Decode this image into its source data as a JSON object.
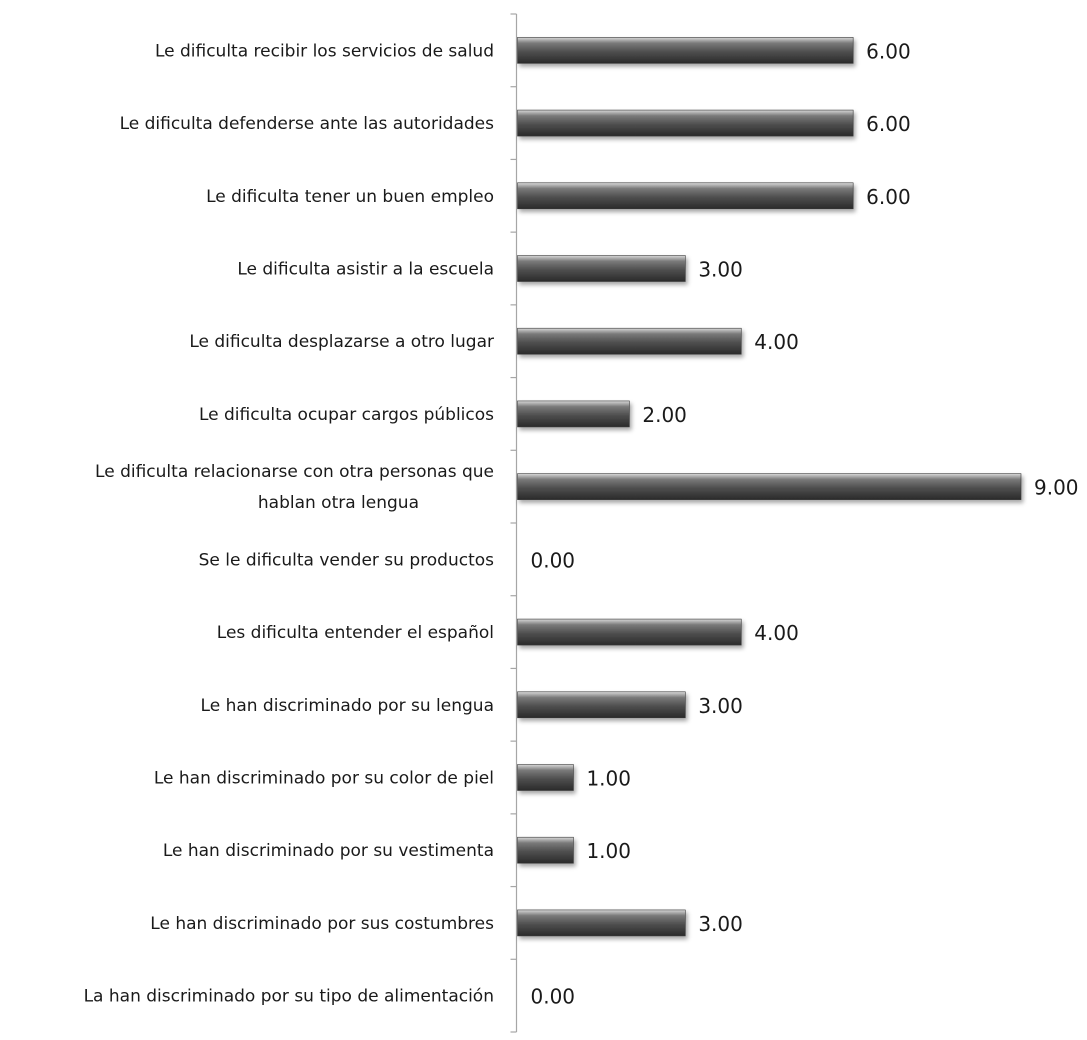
{
  "chart_data": {
    "type": "bar",
    "orientation": "horizontal",
    "categories": [
      "Le dificulta recibir los servicios de salud",
      "Le dificulta defenderse ante las autoridades",
      "Le dificulta tener un buen empleo",
      "Le dificulta asistir a la escuela",
      "Le dificulta desplazarse a otro lugar",
      "Le dificulta ocupar cargos públicos",
      "Le dificulta  relacionarse con otra personas que hablan otra lengua",
      "Se le dificulta vender su productos",
      "Les  dificulta entender el español",
      "Le  han discriminado por su lengua",
      "Le  han discriminado por su color de piel",
      "Le  han discriminado por su vestimenta",
      "Le  han discriminado por sus costumbres",
      "La  han discriminado por su tipo de alimentación"
    ],
    "category_lines": [
      [
        "Le dificulta recibir los servicios de salud"
      ],
      [
        "Le dificulta defenderse ante las autoridades"
      ],
      [
        "Le dificulta tener un buen empleo"
      ],
      [
        "Le dificulta asistir a la escuela"
      ],
      [
        "Le dificulta desplazarse a otro lugar"
      ],
      [
        "Le dificulta ocupar cargos públicos"
      ],
      [
        "Le dificulta  relacionarse con otra personas que",
        "hablan otra lengua"
      ],
      [
        "Se le dificulta vender su productos"
      ],
      [
        "Les  dificulta entender el español"
      ],
      [
        "Le  han discriminado por su lengua"
      ],
      [
        "Le  han discriminado por su color de piel"
      ],
      [
        "Le  han discriminado por su vestimenta"
      ],
      [
        "Le  han discriminado por sus costumbres"
      ],
      [
        "La  han discriminado por su tipo de alimentación"
      ]
    ],
    "values": [
      6,
      6,
      6,
      3,
      4,
      2,
      9,
      0,
      4,
      3,
      1,
      1,
      3,
      0
    ],
    "value_labels": [
      "6.00",
      "6.00",
      "6.00",
      "3.00",
      "4.00",
      "2.00",
      "9.00",
      "0.00",
      "4.00",
      "3.00",
      "1.00",
      "1.00",
      "3.00",
      "0.00"
    ],
    "xlim": [
      0,
      9
    ],
    "grid": false,
    "legend": "none",
    "bar_color": "#555555",
    "axis_color": "#a6a6a6"
  }
}
